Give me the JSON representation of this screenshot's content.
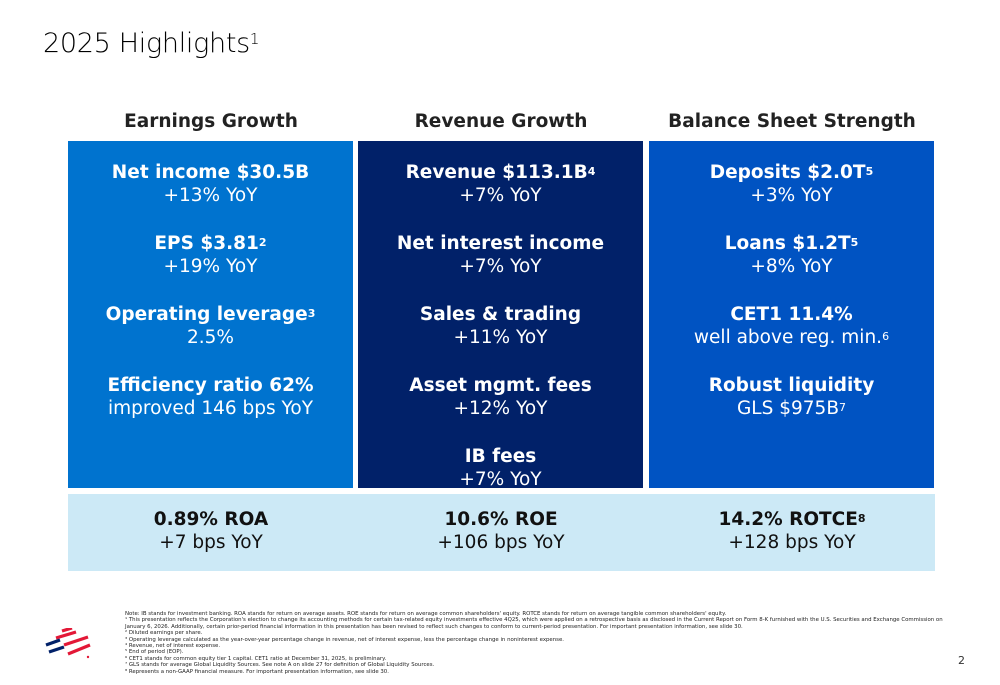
{
  "title": {
    "text": "2025 Highlights",
    "sup": "1"
  },
  "columns": [
    {
      "header": "Earnings Growth",
      "color": "#0073cf",
      "items": [
        {
          "label": "Net income $30.5B",
          "sup": "",
          "value": "+13% YoY",
          "value_sup": ""
        },
        {
          "label": "EPS $3.81",
          "sup": "2",
          "value": "+19% YoY",
          "value_sup": ""
        },
        {
          "label": "Operating leverage",
          "sup": "3",
          "value": "2.5%",
          "value_sup": ""
        },
        {
          "label": "Efficiency ratio 62%",
          "sup": "",
          "value": "improved 146 bps YoY",
          "value_sup": ""
        }
      ]
    },
    {
      "header": "Revenue Growth",
      "color": "#012169",
      "items": [
        {
          "label": "Revenue $113.1B",
          "sup": "4",
          "value": "+7% YoY",
          "value_sup": ""
        },
        {
          "label": "Net interest income",
          "sup": "",
          "value": "+7% YoY",
          "value_sup": ""
        },
        {
          "label": "Sales & trading",
          "sup": "",
          "value": "+11% YoY",
          "value_sup": ""
        },
        {
          "label": "Asset mgmt. fees",
          "sup": "",
          "value": "+12% YoY",
          "value_sup": ""
        },
        {
          "label": "IB fees",
          "sup": "",
          "value": "+7% YoY",
          "value_sup": ""
        }
      ]
    },
    {
      "header": "Balance Sheet Strength",
      "color": "#0053c2",
      "items": [
        {
          "label": "Deposits $2.0T",
          "sup": "5",
          "value": "+3% YoY",
          "value_sup": ""
        },
        {
          "label": "Loans $1.2T",
          "sup": "5",
          "value": "+8% YoY",
          "value_sup": ""
        },
        {
          "label": "CET1 11.4%",
          "sup": "",
          "value": "well above reg. min.",
          "value_sup": "6"
        },
        {
          "label": "Robust liquidity",
          "sup": "",
          "value": "GLS $975B",
          "value_sup": "7"
        }
      ]
    }
  ],
  "bottom": [
    {
      "label": "0.89% ROA",
      "sup": "",
      "value": "+7 bps YoY"
    },
    {
      "label": "10.6% ROE",
      "sup": "",
      "value": "+106 bps YoY"
    },
    {
      "label": "14.2% ROTCE",
      "sup": "8",
      "value": "+128 bps YoY"
    }
  ],
  "notes": [
    "Note: IB stands for investment banking. ROA stands for return on average assets. ROE stands for return on average common shareholders' equity. ROTCE stands for return on average tangible common shareholders' equity.",
    "¹ This presentation reflects the Corporation's election to change its accounting methods for certain tax-related equity investments effective 4Q25, which were applied on a retrospective basis as disclosed in the Current Report on Form 8-K furnished with the U.S. Securities and Exchange Commission on January 6, 2026. Additionally, certain prior-period financial information in this presentation has been revised to reflect such changes to conform to current-period presentation. For important presentation information, see slide 30.",
    "² Diluted earnings per share.",
    "³ Operating leverage calculated as the year-over-year percentage change in revenue, net of interest expense, less the percentage change in noninterest expense.",
    "⁴ Revenue, net of interest expense.",
    "⁵ End of period (EOP).",
    "⁶ CET1 stands for common equity tier 1 capital. CET1 ratio at December 31, 2025, is preliminary.",
    "⁷ GLS stands for average Global Liquidity Sources. See note A on slide 27 for definition of Global Liquidity Sources.",
    "⁸ Represents a non-GAAP financial measure. For important presentation information, see slide 30."
  ],
  "page_number": "2",
  "logo": {
    "icon": "flag-logo",
    "colors": [
      "#e31837",
      "#012169"
    ]
  }
}
